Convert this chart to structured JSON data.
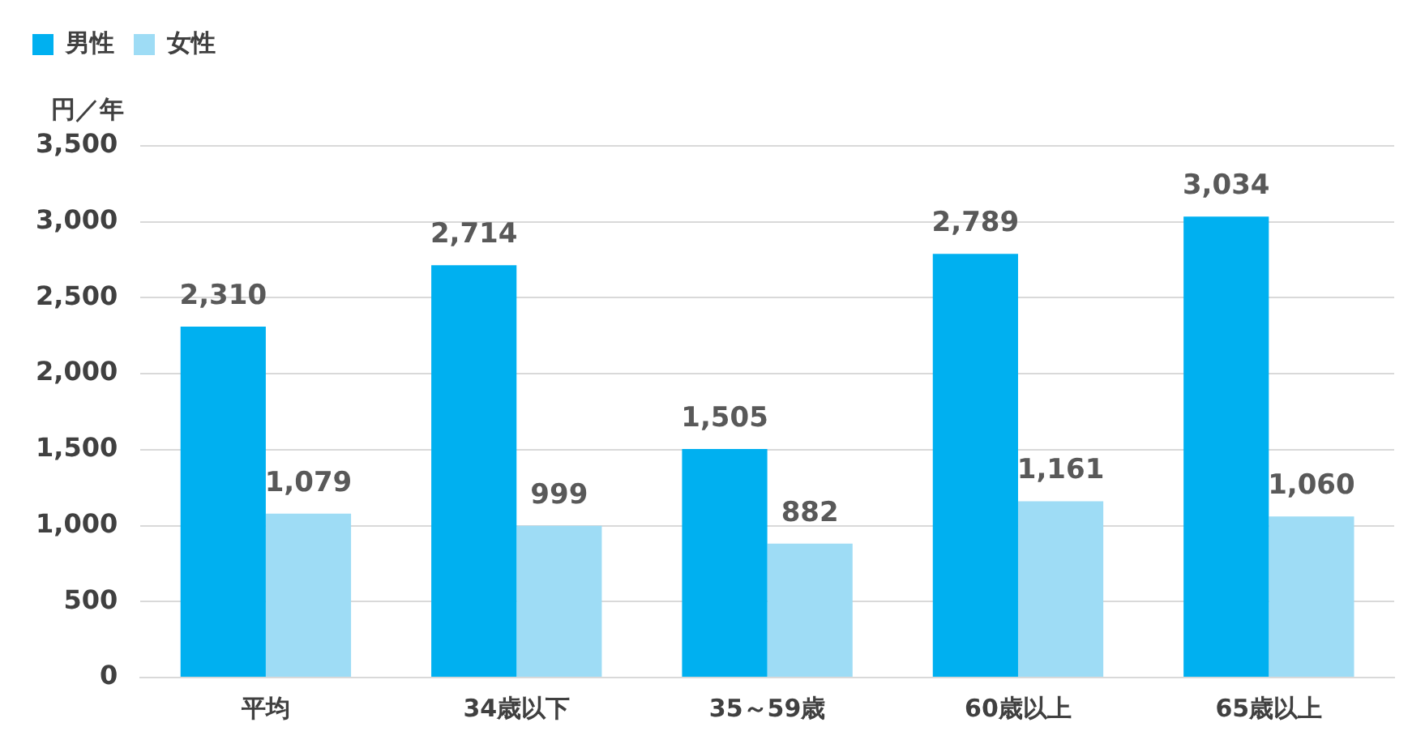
{
  "chart_data": {
    "type": "bar",
    "ylabel": "円／年",
    "categories": [
      "平均",
      "34歳以下",
      "35～59歳",
      "60歳以上",
      "65歳以上"
    ],
    "series": [
      {
        "name": "男性",
        "color": "#00b0f0",
        "values": [
          2310,
          2714,
          1505,
          2789,
          3034
        ],
        "value_labels": [
          "2,310",
          "2,714",
          "1,505",
          "2,789",
          "3,034"
        ]
      },
      {
        "name": "女性",
        "color": "#9edcf5",
        "values": [
          1079,
          999,
          882,
          1161,
          1060
        ],
        "value_labels": [
          "1,079",
          "999",
          "882",
          "1,161",
          "1,060"
        ]
      }
    ],
    "ylim": [
      0,
      3500
    ],
    "yticks": [
      {
        "value": 0,
        "label": "0"
      },
      {
        "value": 500,
        "label": "500"
      },
      {
        "value": 1000,
        "label": "1,000"
      },
      {
        "value": 1500,
        "label": "1,500"
      },
      {
        "value": 2000,
        "label": "2,000"
      },
      {
        "value": 2500,
        "label": "2,500"
      },
      {
        "value": 3000,
        "label": "3,000"
      },
      {
        "value": 3500,
        "label": "3,500"
      }
    ],
    "grid": "y",
    "legend": "top left"
  }
}
